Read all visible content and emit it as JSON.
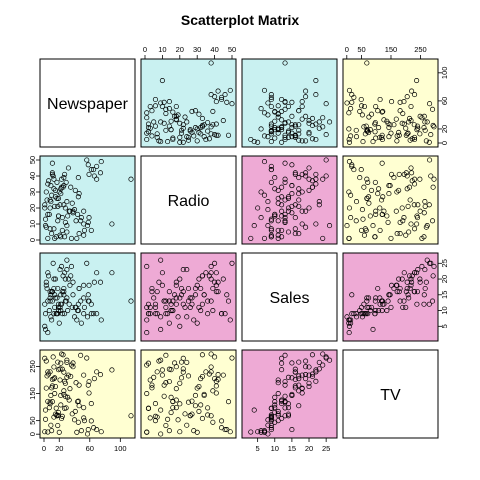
{
  "title": "Scatterplot Matrix",
  "chart_data": {
    "type": "scatter",
    "title": "Scatterplot Matrix",
    "variables": [
      "Newspaper",
      "Radio",
      "Sales",
      "TV"
    ],
    "ranges": {
      "Newspaper": [
        0,
        114
      ],
      "Radio": [
        0,
        50
      ],
      "Sales": [
        1.6,
        27
      ],
      "TV": [
        0.7,
        296
      ]
    },
    "ticks": {
      "Newspaper": [
        0,
        20,
        60,
        100
      ],
      "Radio": [
        0,
        10,
        20,
        30,
        40,
        50
      ],
      "Sales": [
        5,
        10,
        15,
        20,
        25
      ],
      "TV": [
        0,
        50,
        150,
        250
      ]
    },
    "cell_colors": {
      "Newspaper-Radio": "#c9f1f1",
      "Newspaper-Sales": "#c9f1f1",
      "Newspaper-TV": "#ffffd2",
      "Radio-Sales": "#eeaad5",
      "Radio-TV": "#ffffd2",
      "Sales-TV": "#eeaad5"
    },
    "points": [
      [
        69,
        38,
        22,
        230
      ],
      [
        45,
        39,
        10,
        44
      ],
      [
        69,
        46,
        9,
        17
      ],
      [
        59,
        41,
        18,
        152
      ],
      [
        58,
        11,
        13,
        181
      ],
      [
        75,
        49,
        7,
        9
      ],
      [
        23,
        33,
        12,
        58
      ],
      [
        11,
        48,
        13,
        120
      ],
      [
        1,
        20,
        5,
        9
      ],
      [
        21,
        3,
        11,
        200
      ],
      [
        24,
        6,
        9,
        66
      ],
      [
        4,
        25,
        17,
        215
      ],
      [
        65,
        44,
        9,
        24
      ],
      [
        7,
        16,
        10,
        98
      ],
      [
        66,
        40,
        19,
        205
      ],
      [
        27,
        41,
        22,
        195
      ],
      [
        114,
        38,
        13,
        68
      ],
      [
        56,
        50,
        25,
        281
      ],
      [
        19,
        26,
        11,
        69
      ],
      [
        26,
        34,
        15,
        147
      ],
      [
        52,
        10,
        18,
        218
      ],
      [
        19,
        15,
        12,
        238
      ],
      [
        49,
        14,
        6,
        13
      ],
      [
        26,
        22,
        16,
        229
      ],
      [
        13,
        7,
        9,
        63
      ],
      [
        22,
        2,
        12,
        262
      ],
      [
        22,
        29,
        15,
        143
      ],
      [
        24,
        14,
        16,
        240
      ],
      [
        38,
        18,
        19,
        249
      ],
      [
        17,
        36,
        9,
        71
      ],
      [
        25,
        33,
        21,
        293
      ],
      [
        62,
        6,
        12,
        113
      ],
      [
        16,
        2,
        9,
        96
      ],
      [
        18,
        21,
        17,
        266
      ],
      [
        27,
        2,
        9,
        95
      ],
      [
        48,
        12,
        13,
        291
      ],
      [
        8,
        20,
        14,
        112
      ],
      [
        38,
        17,
        15,
        263
      ],
      [
        5,
        35,
        22,
        230
      ],
      [
        13,
        38,
        20,
        248
      ],
      [
        5,
        1,
        3,
        8
      ],
      [
        59,
        14,
        13,
        194
      ],
      [
        1,
        22,
        12,
        280
      ],
      [
        57,
        9,
        8,
        0.7
      ],
      [
        74,
        42,
        19,
        220
      ],
      [
        40,
        19,
        8,
        53
      ],
      [
        22,
        32,
        10,
        108
      ],
      [
        10,
        4,
        16,
        171
      ],
      [
        46,
        29,
        17,
        105
      ],
      [
        17,
        26,
        14,
        68
      ],
      [
        2,
        9,
        4,
        89
      ],
      [
        35,
        33,
        21,
        213
      ],
      [
        30,
        24,
        23,
        265
      ],
      [
        3,
        8,
        19,
        270
      ],
      [
        8,
        7,
        16,
        230
      ],
      [
        32,
        45,
        20,
        218
      ],
      [
        44,
        16,
        10,
        120
      ],
      [
        9,
        34,
        15,
        143
      ],
      [
        15,
        27,
        14,
        74
      ],
      [
        34,
        18,
        18,
        168
      ],
      [
        42,
        12,
        11,
        190
      ],
      [
        52,
        3,
        9,
        60
      ],
      [
        12,
        40,
        25,
        285
      ],
      [
        43,
        1,
        7,
        7
      ],
      [
        29,
        36,
        13,
        97
      ],
      [
        21,
        22,
        23,
        241
      ],
      [
        3,
        30,
        18,
        170
      ],
      [
        37,
        23,
        11,
        75
      ],
      [
        28,
        11,
        13,
        140
      ],
      [
        58,
        47,
        15,
        17
      ],
      [
        6,
        37,
        21,
        222
      ],
      [
        14,
        21,
        15,
        208
      ],
      [
        15,
        31,
        20,
        176
      ],
      [
        31,
        15,
        10,
        136
      ],
      [
        45,
        27,
        12,
        122
      ],
      [
        2,
        13,
        9,
        55
      ],
      [
        30,
        5,
        14,
        210
      ],
      [
        89,
        10,
        22,
        237
      ],
      [
        11,
        42,
        16,
        202
      ],
      [
        20,
        30,
        6,
        7
      ],
      [
        14,
        1,
        11,
        150
      ],
      [
        9,
        24,
        8,
        33
      ],
      [
        46,
        4,
        17,
        181
      ],
      [
        33,
        18,
        12,
        126
      ],
      [
        23,
        38,
        24,
        296
      ],
      [
        18,
        12,
        9,
        32
      ],
      [
        41,
        31,
        11,
        84
      ],
      [
        5,
        16,
        13,
        121
      ],
      [
        53,
        6,
        11,
        50
      ],
      [
        26,
        39,
        17,
        160
      ],
      [
        10,
        28,
        7,
        13
      ],
      [
        30,
        9,
        26,
        273
      ],
      [
        8,
        25,
        13,
        118
      ],
      [
        36,
        1,
        24,
        255
      ],
      [
        11,
        41,
        16,
        178
      ],
      [
        28,
        20,
        20,
        188
      ],
      [
        19,
        15,
        10,
        80
      ],
      [
        62,
        44,
        9,
        49
      ],
      [
        13,
        32,
        17,
        205
      ],
      [
        52,
        18,
        14,
        98
      ]
    ]
  }
}
